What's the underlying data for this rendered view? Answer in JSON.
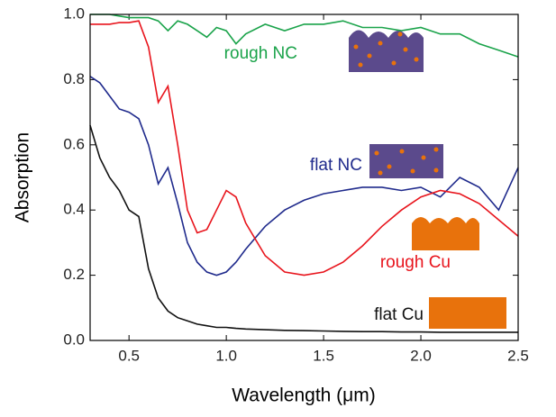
{
  "chart_data": {
    "type": "line",
    "x_label": "Wavelength (μm)",
    "y_label": "Absorption",
    "x": [
      0.3,
      0.35,
      0.4,
      0.45,
      0.5,
      0.55,
      0.6,
      0.65,
      0.7,
      0.75,
      0.8,
      0.85,
      0.9,
      0.95,
      1.0,
      1.05,
      1.1,
      1.2,
      1.3,
      1.4,
      1.5,
      1.6,
      1.7,
      1.8,
      1.9,
      2.0,
      2.1,
      2.2,
      2.3,
      2.4,
      2.5
    ],
    "series": [
      {
        "name": "rough NC",
        "color": "#1aa34a",
        "values": [
          1.0,
          1.0,
          1.0,
          0.995,
          0.99,
          0.99,
          0.99,
          0.98,
          0.95,
          0.98,
          0.97,
          0.95,
          0.93,
          0.96,
          0.95,
          0.91,
          0.94,
          0.97,
          0.95,
          0.97,
          0.97,
          0.98,
          0.96,
          0.96,
          0.95,
          0.96,
          0.94,
          0.94,
          0.91,
          0.89,
          0.87
        ]
      },
      {
        "name": "flat NC",
        "color": "#1f2a8c",
        "values": [
          0.81,
          0.79,
          0.75,
          0.71,
          0.7,
          0.68,
          0.6,
          0.48,
          0.53,
          0.42,
          0.3,
          0.24,
          0.21,
          0.2,
          0.21,
          0.24,
          0.28,
          0.35,
          0.4,
          0.43,
          0.45,
          0.46,
          0.47,
          0.47,
          0.46,
          0.47,
          0.44,
          0.5,
          0.47,
          0.4,
          0.53
        ]
      },
      {
        "name": "rough Cu",
        "color": "#e8141c",
        "values": [
          0.97,
          0.97,
          0.97,
          0.975,
          0.975,
          0.98,
          0.9,
          0.73,
          0.78,
          0.6,
          0.4,
          0.33,
          0.34,
          0.4,
          0.46,
          0.44,
          0.36,
          0.26,
          0.21,
          0.2,
          0.21,
          0.24,
          0.29,
          0.35,
          0.4,
          0.44,
          0.46,
          0.45,
          0.42,
          0.37,
          0.32
        ]
      },
      {
        "name": "flat Cu",
        "color": "#111111",
        "values": [
          0.66,
          0.56,
          0.5,
          0.46,
          0.4,
          0.38,
          0.22,
          0.13,
          0.09,
          0.07,
          0.06,
          0.05,
          0.045,
          0.04,
          0.04,
          0.037,
          0.035,
          0.033,
          0.031,
          0.03,
          0.029,
          0.028,
          0.027,
          0.027,
          0.026,
          0.026,
          0.025,
          0.025,
          0.025,
          0.025,
          0.025
        ]
      }
    ],
    "xlim": [
      0.3,
      2.5
    ],
    "ylim": [
      0,
      1
    ],
    "xticks": [
      0.5,
      {
        "value": 1,
        "label": "1.0"
      },
      1.5,
      {
        "value": 2,
        "label": "2.0"
      },
      2.5
    ],
    "yticks": [
      {
        "value": 0,
        "label": "0.0"
      },
      0.2,
      0.4,
      0.6,
      0.8,
      {
        "value": 1,
        "label": "1.0"
      }
    ]
  }
}
